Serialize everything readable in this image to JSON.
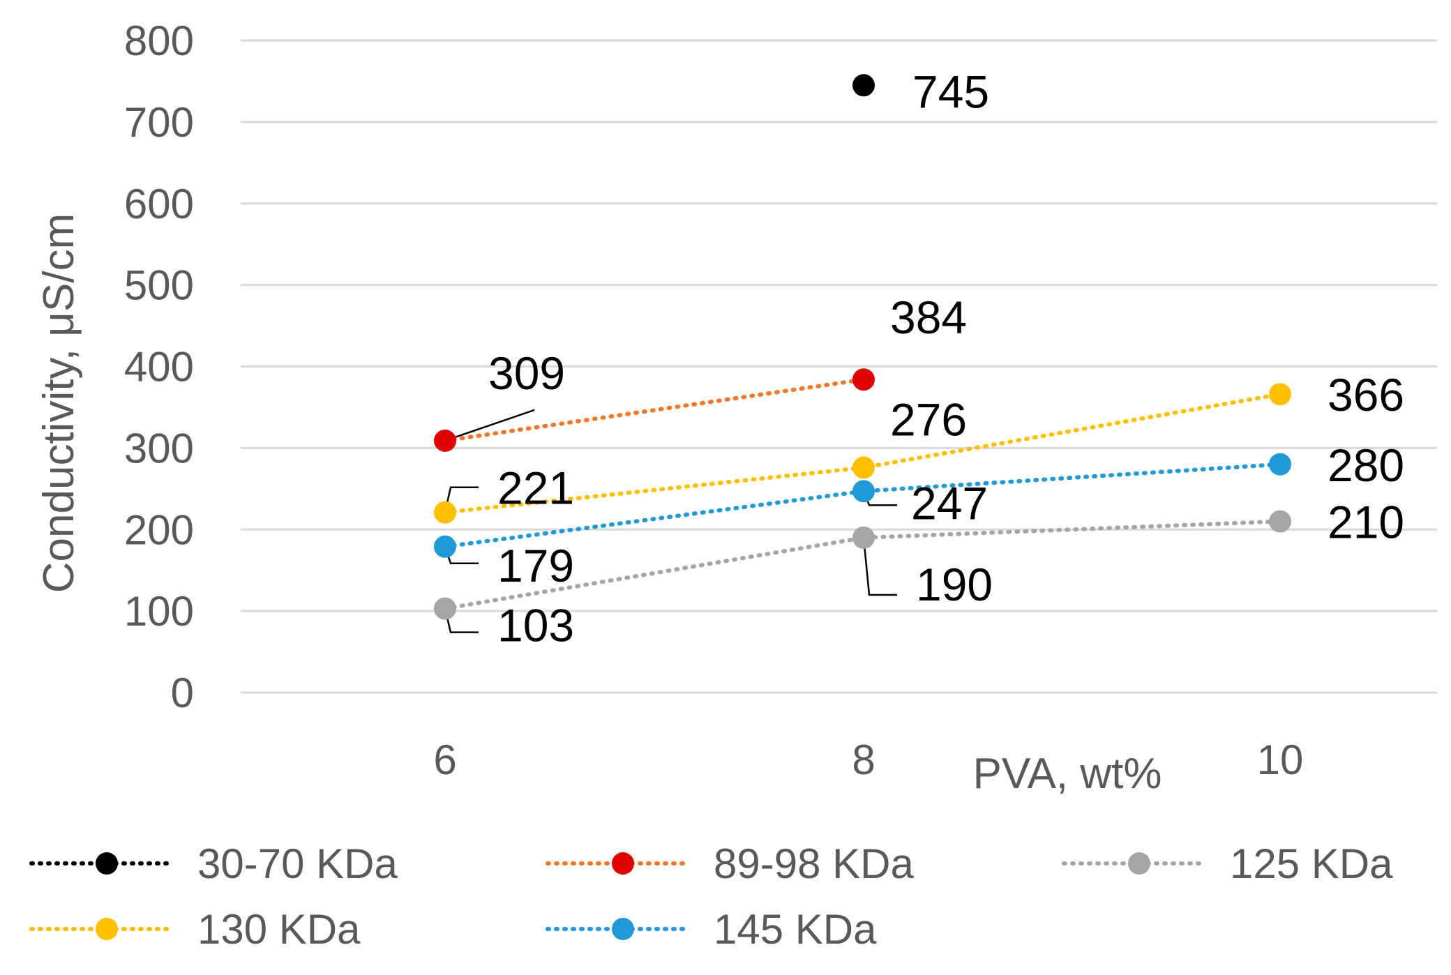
{
  "chart_data": {
    "type": "scatter",
    "title": "",
    "xlabel": "PVA, wt%",
    "ylabel": "Conductivity, μS/cm",
    "categories": [
      "6",
      "8",
      "10"
    ],
    "ylim": [
      0,
      800
    ],
    "y_ticks": [
      0,
      100,
      200,
      300,
      400,
      500,
      600,
      700,
      800
    ],
    "grid": true,
    "legend_position": "bottom",
    "series": [
      {
        "name": "30-70 KDa",
        "color": "#000000",
        "line_color": "#000000",
        "x": [
          8
        ],
        "values": [
          745
        ],
        "labels": [
          "745"
        ]
      },
      {
        "name": "89-98 KDa",
        "color": "#E00000",
        "line_color": "#F4782A",
        "x": [
          6,
          8
        ],
        "values": [
          309,
          384
        ],
        "labels": [
          "309",
          "384"
        ]
      },
      {
        "name": "125 KDa",
        "color": "#A5A5A5",
        "line_color": "#A5A5A5",
        "x": [
          6,
          8,
          10
        ],
        "values": [
          103,
          190,
          210
        ],
        "labels": [
          "103",
          "190",
          "210"
        ]
      },
      {
        "name": "130 KDa",
        "color": "#FFC000",
        "line_color": "#FFC000",
        "x": [
          6,
          8,
          10
        ],
        "values": [
          221,
          276,
          366
        ],
        "labels": [
          "221",
          "276",
          "366"
        ]
      },
      {
        "name": "145 KDa",
        "color": "#1F9AD6",
        "line_color": "#1F9AD6",
        "x": [
          6,
          8,
          10
        ],
        "values": [
          179,
          247,
          280
        ],
        "labels": [
          "179",
          "247",
          "280"
        ]
      }
    ]
  }
}
